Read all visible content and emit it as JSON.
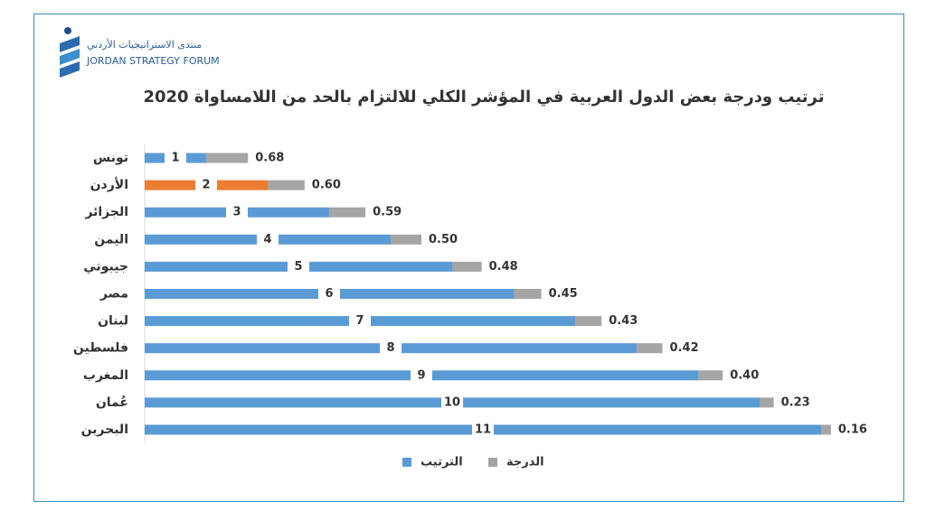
{
  "logo": {
    "arabic": "منتدى الاستراتيجيات الأردني",
    "english": "JORDAN STRATEGY FORUM"
  },
  "chart_data": {
    "type": "bar",
    "orientation": "horizontal",
    "stacked": true,
    "title": "ترتيب ودرجة بعض الدول العربية في المؤشر الكلي للالتزام بالحد من اللامساواة 2020",
    "categories": [
      "تونس",
      "الأردن",
      "الجزائر",
      "اليمن",
      "جيبوتي",
      "مصر",
      "لبنان",
      "فلسطين",
      "المغرب",
      "عُمان",
      "البحرين"
    ],
    "series": [
      {
        "name": "الترتيب",
        "color": "#5b9bd5",
        "colors": [
          "#5b9bd5",
          "#ed7d31",
          "#5b9bd5",
          "#5b9bd5",
          "#5b9bd5",
          "#5b9bd5",
          "#5b9bd5",
          "#5b9bd5",
          "#5b9bd5",
          "#5b9bd5",
          "#5b9bd5"
        ],
        "values": [
          1,
          2,
          3,
          4,
          5,
          6,
          7,
          8,
          9,
          10,
          11
        ]
      },
      {
        "name": "الدرجة",
        "color": "#a5a5a5",
        "values": [
          0.68,
          0.6,
          0.59,
          0.5,
          0.48,
          0.45,
          0.43,
          0.42,
          0.4,
          0.23,
          0.16
        ],
        "value_labels": [
          "0.68",
          "0.60",
          "0.59",
          "0.50",
          "0.48",
          "0.45",
          "0.43",
          "0.42",
          "0.40",
          "0.23",
          "0.16"
        ]
      }
    ],
    "legend": "bottom"
  }
}
